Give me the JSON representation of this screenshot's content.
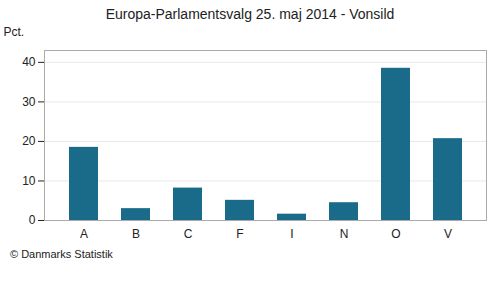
{
  "chart_data": {
    "type": "bar",
    "title": "Europa-Parlamentsvalg 25. maj 2014 - Vonsild",
    "categories": [
      "A",
      "B",
      "C",
      "F",
      "I",
      "N",
      "O",
      "V"
    ],
    "values": [
      18.5,
      3.0,
      8.2,
      5.1,
      1.6,
      4.5,
      38.5,
      20.7
    ],
    "color": "#1a6b8a",
    "ylabel": "Pct.",
    "ylim": [
      0,
      43
    ],
    "yticks": [
      0,
      10,
      20,
      30,
      40
    ],
    "grid": true,
    "caption": "© Danmarks Statistik"
  }
}
